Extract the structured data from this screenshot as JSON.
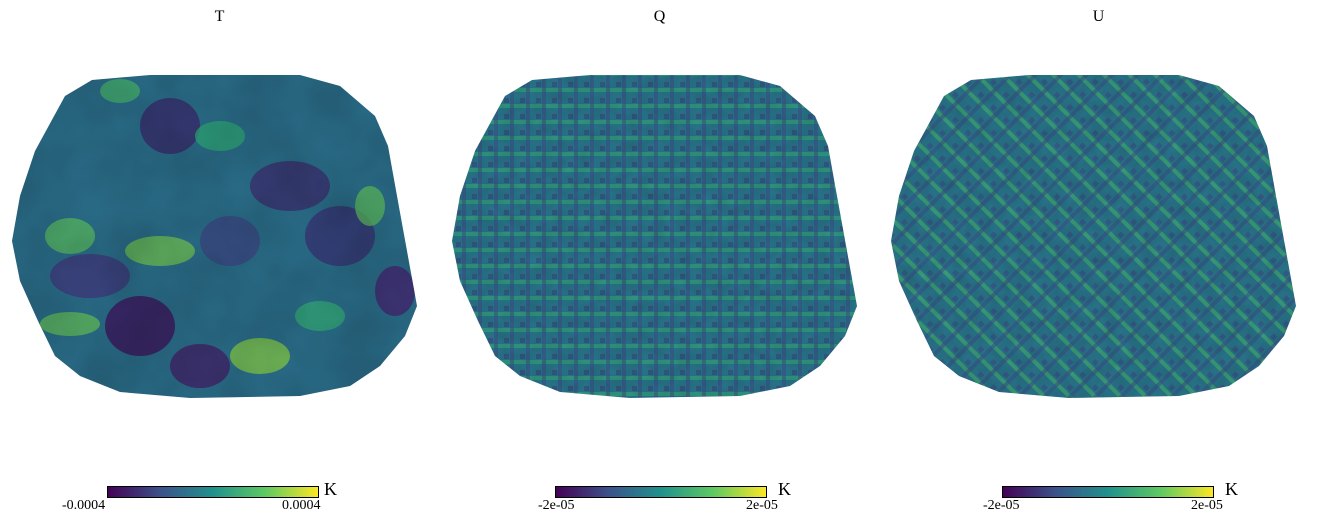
{
  "panels": [
    {
      "title": "T",
      "unit": "K",
      "min_label": "-0.0004",
      "max_label": "0.0004",
      "pattern": "large-scale-blobs"
    },
    {
      "title": "Q",
      "unit": "K",
      "min_label": "-2e-05",
      "max_label": "2e-05",
      "pattern": "grid-cross-hatch"
    },
    {
      "title": "U",
      "unit": "K",
      "min_label": "-2e-05",
      "max_label": "2e-05",
      "pattern": "diagonal-cross-hatch"
    }
  ],
  "colormap": {
    "name": "viridis",
    "stops": [
      "#440154",
      "#3b528b",
      "#21918c",
      "#5ec962",
      "#fde725"
    ]
  }
}
